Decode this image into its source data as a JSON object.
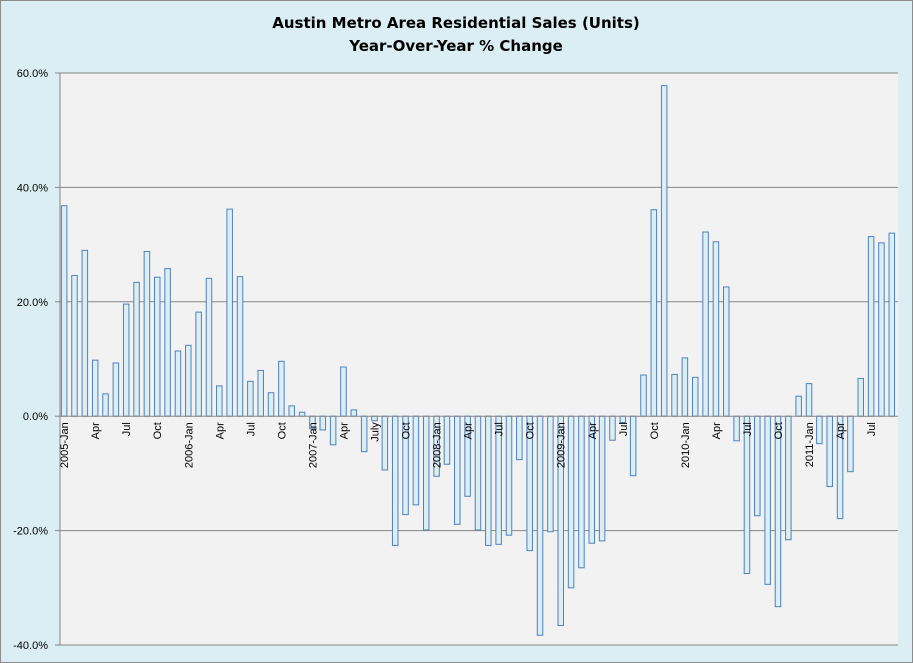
{
  "chart_data": {
    "type": "bar",
    "title": "Austin Metro Area Residential Sales (Units)",
    "subtitle": "Year-Over-Year % Change",
    "xlabel": "",
    "ylabel": "",
    "ylim": [
      -40,
      60
    ],
    "yticks": [
      60,
      40,
      20,
      0,
      -20,
      -40
    ],
    "ytick_labels": [
      "60.0%",
      "40.0%",
      "20.0%",
      "0.0%",
      "-20.0%",
      "-40.0%"
    ],
    "grid": true,
    "legend": "none",
    "tick_label_every": 3,
    "tick_labels": [
      "2005-Jan",
      "Apr",
      "Jul",
      "Oct",
      "2006-Jan",
      "Apr",
      "Jul",
      "Oct",
      "2007-Jan",
      "Apr",
      "July",
      "Oct",
      "2008-Jan",
      "Apr",
      "Jul",
      "Oct",
      "2009-Jan",
      "Apr",
      "Jul",
      "Oct",
      "2010-Jan",
      "Apr",
      "Jul",
      "Oct",
      "2011-Jan",
      "Apr",
      "Jul"
    ],
    "values": [
      36.8,
      24.6,
      29.0,
      9.8,
      3.9,
      9.3,
      19.6,
      23.4,
      28.8,
      24.3,
      25.8,
      11.4,
      12.4,
      18.2,
      24.1,
      5.3,
      36.2,
      24.4,
      6.1,
      8.0,
      4.1,
      9.6,
      1.8,
      0.7,
      -2.2,
      -2.4,
      -5.0,
      8.6,
      1.1,
      -6.2,
      -0.8,
      -9.4,
      -22.6,
      -17.2,
      -15.5,
      -19.9,
      -10.5,
      -8.4,
      -18.9,
      -14.0,
      -19.9,
      -22.6,
      -22.4,
      -20.8,
      -7.6,
      -23.5,
      -38.3,
      -20.2,
      -36.6,
      -30.0,
      -26.5,
      -22.2,
      -21.8,
      -4.2,
      -1.1,
      -10.4,
      7.2,
      36.1,
      57.8,
      7.3,
      10.2,
      6.8,
      32.2,
      30.5,
      22.6,
      -4.3,
      -27.5,
      -17.4,
      -29.4,
      -33.3,
      -21.6,
      3.5,
      5.7,
      -4.8,
      -12.3,
      -17.9,
      -9.7,
      6.6,
      31.4,
      30.3,
      32.0
    ],
    "colors": {
      "bar_fill": "#dbeef4",
      "bar_stroke": "#4f81bd",
      "plot_bg": "#f2f2f2",
      "chart_bg": "#dbeef4",
      "grid": "#868686"
    }
  }
}
